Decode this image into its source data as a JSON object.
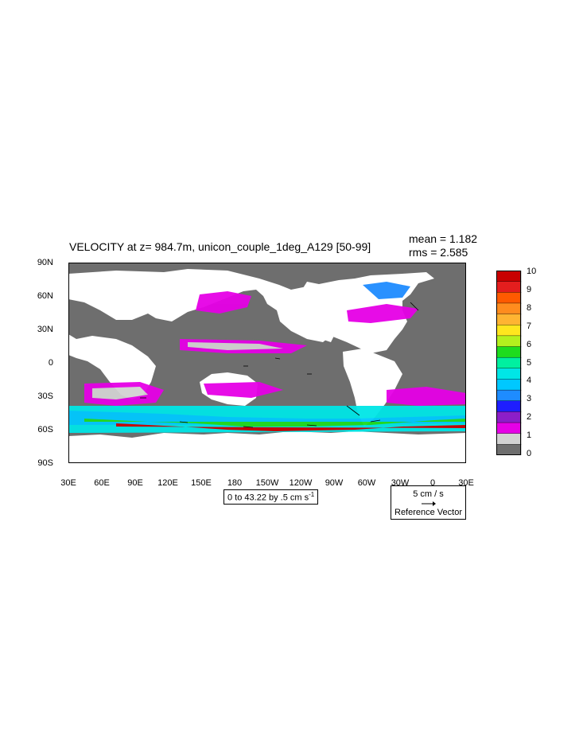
{
  "title": "VELOCITY at z= 984.7m, unicon_couple_1deg_A129 [50-99]",
  "stats": {
    "mean": "mean = 1.182",
    "rms": "rms = 2.585"
  },
  "y_axis": {
    "ticks": [
      "90N",
      "60N",
      "30N",
      "0",
      "30S",
      "60S",
      "90S"
    ]
  },
  "x_axis": {
    "ticks": [
      "30E",
      "60E",
      "90E",
      "120E",
      "150E",
      "180",
      "150W",
      "120W",
      "90W",
      "60W",
      "30W",
      "0",
      "30E"
    ]
  },
  "contour_info": "0 to 43.22 by .5 cm s",
  "contour_info_exp": "-1",
  "reference_vector": {
    "speed": "5 cm / s",
    "label": "Reference Vector"
  },
  "colorbar": {
    "labels": [
      "10",
      "9",
      "8",
      "7",
      "6",
      "5",
      "4",
      "3",
      "2",
      "1",
      "0"
    ],
    "colors": [
      "#c80000",
      "#e41e1e",
      "#ff5a00",
      "#ff8c1e",
      "#ffb432",
      "#ffe61e",
      "#b4f01e",
      "#1edc1e",
      "#00f0a0",
      "#00e6e6",
      "#00c8ff",
      "#1e8cff",
      "#1e1eff",
      "#8c1ec8",
      "#e600e6",
      "#d2d2d2",
      "#6e6e6e"
    ]
  },
  "colors": {
    "land": "#ffffff",
    "low_speed": "#6e6e6e",
    "frame": "#000000"
  }
}
